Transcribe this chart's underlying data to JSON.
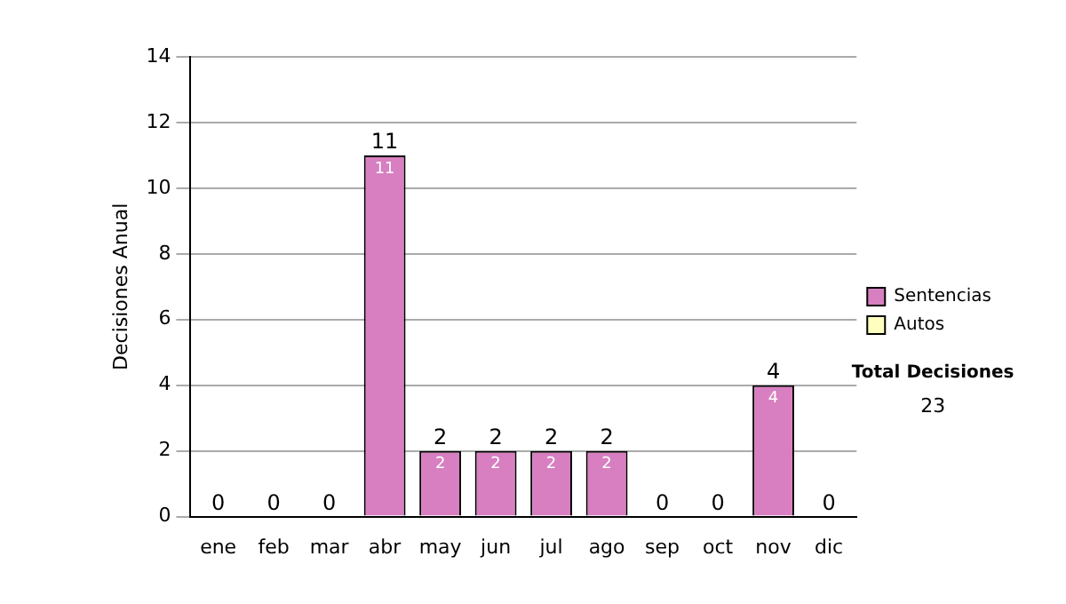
{
  "chart_data": {
    "type": "bar",
    "stacked": true,
    "ylabel": "Decisiones Anual",
    "categories": [
      "ene",
      "feb",
      "mar",
      "abr",
      "may",
      "jun",
      "jul",
      "ago",
      "sep",
      "oct",
      "nov",
      "dic"
    ],
    "series": [
      {
        "name": "Sentencias",
        "color": "#d77fc0",
        "values": [
          0,
          0,
          0,
          11,
          2,
          2,
          2,
          2,
          0,
          0,
          4,
          0
        ],
        "value_labels": [
          null,
          null,
          null,
          "11",
          "2",
          "2",
          "2",
          "2",
          null,
          null,
          "4",
          null
        ]
      },
      {
        "name": "Autos",
        "color": "#ffffc0",
        "values": [
          0,
          0,
          0,
          0,
          0,
          0,
          0,
          0,
          0,
          0,
          0,
          0
        ]
      }
    ],
    "totals": [
      "0",
      "0",
      "0",
      "11",
      "2",
      "2",
      "2",
      "2",
      "0",
      "0",
      "4",
      "0"
    ],
    "ylim": [
      0,
      14
    ],
    "yticks": [
      0,
      2,
      4,
      6,
      8,
      10,
      12,
      14
    ],
    "grid": "y",
    "legend": "right",
    "annotations": [
      "Total Decisiones",
      "23"
    ]
  }
}
